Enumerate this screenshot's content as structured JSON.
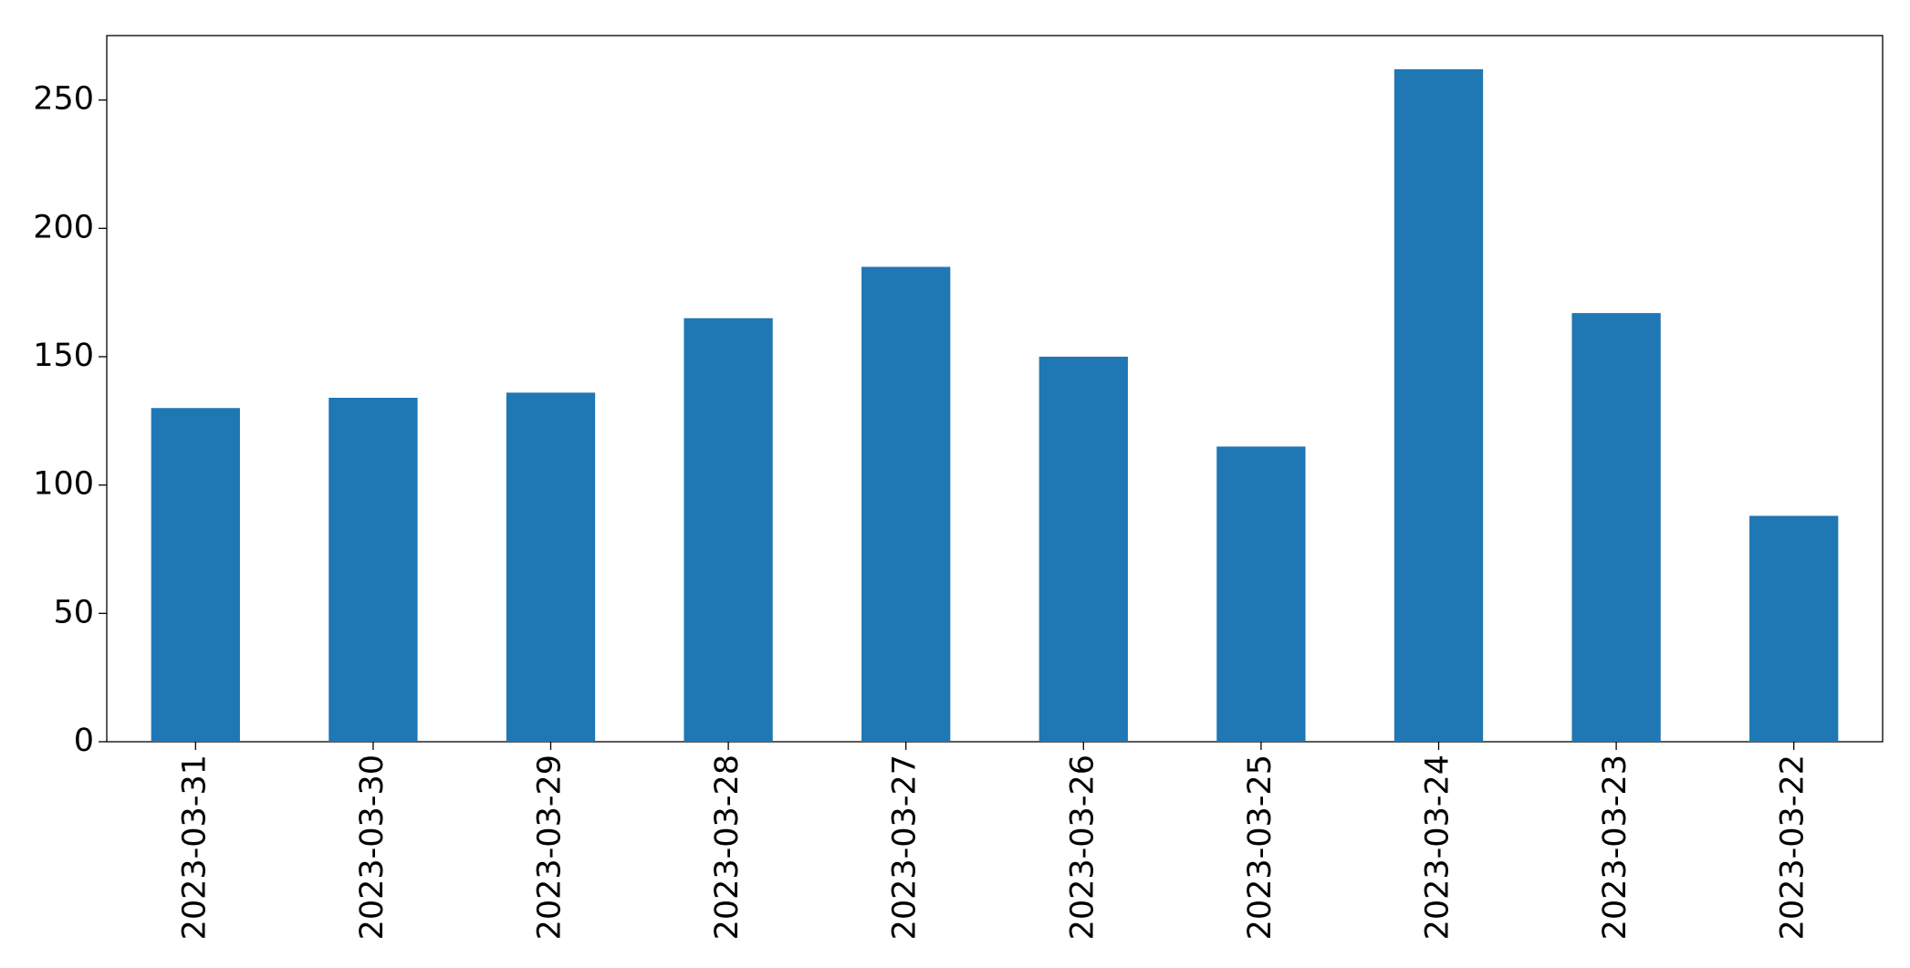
{
  "chart_data": {
    "type": "bar",
    "categories": [
      "2023-03-31",
      "2023-03-30",
      "2023-03-29",
      "2023-03-28",
      "2023-03-27",
      "2023-03-26",
      "2023-03-25",
      "2023-03-24",
      "2023-03-23",
      "2023-03-22"
    ],
    "values": [
      130,
      134,
      136,
      165,
      185,
      150,
      115,
      262,
      167,
      88
    ],
    "color": "#1f77b4",
    "ylim": [
      0,
      275.1
    ],
    "yticks": [
      0,
      50,
      100,
      150,
      200,
      250
    ],
    "grid": false
  }
}
